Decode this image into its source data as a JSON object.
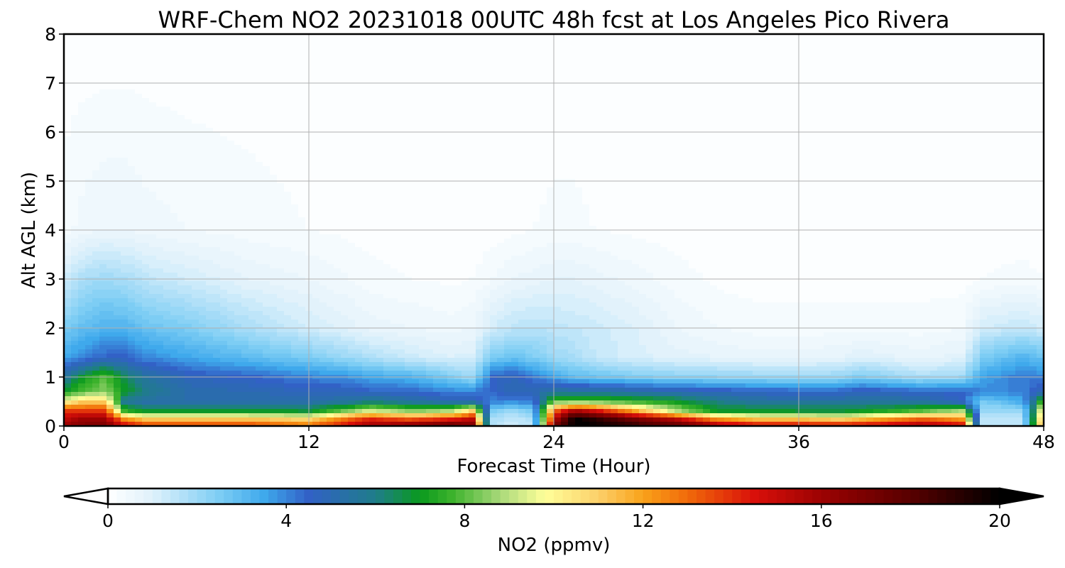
{
  "chart_data": {
    "type": "heatmap",
    "title": "WRF-Chem NO2  20231018 00UTC 48h fcst at Los Angeles Pico Rivera",
    "xlabel": "Forecast Time (Hour)",
    "ylabel": "Alt AGL (km)",
    "xlim": [
      0,
      48
    ],
    "ylim": [
      0,
      8
    ],
    "xticks": [
      0,
      12,
      24,
      36,
      48
    ],
    "yticks": [
      0,
      1,
      2,
      3,
      4,
      5,
      6,
      7,
      8
    ],
    "grid": true,
    "colorbar": {
      "label": "NO2  (ppmv)",
      "range": [
        0,
        20
      ],
      "ticks": [
        0,
        4,
        8,
        12,
        16,
        20
      ],
      "extend": "both",
      "levels": 100,
      "colormap": [
        [
          0,
          "#ffffff"
        ],
        [
          1,
          "#dff1fb"
        ],
        [
          2.5,
          "#7dcdf4"
        ],
        [
          3.5,
          "#3fa9ec"
        ],
        [
          4.5,
          "#3261c6"
        ],
        [
          6,
          "#1f7d8a"
        ],
        [
          7,
          "#0a9a1e"
        ],
        [
          7.7,
          "#3bb22c"
        ],
        [
          8.8,
          "#a9d97a"
        ],
        [
          9.8,
          "#ffff9a"
        ],
        [
          11,
          "#fcd06a"
        ],
        [
          12,
          "#f9a21a"
        ],
        [
          13,
          "#f16a0a"
        ],
        [
          14.5,
          "#d9100a"
        ],
        [
          16,
          "#9c0202"
        ],
        [
          18,
          "#580000"
        ],
        [
          20,
          "#000000"
        ]
      ]
    },
    "x": [
      0,
      1,
      2,
      3,
      4,
      6,
      9,
      12,
      14,
      15,
      17,
      19,
      20,
      21,
      22,
      23,
      24,
      25,
      26,
      28,
      30,
      32,
      34,
      36,
      38,
      39,
      42,
      44,
      45,
      47,
      48
    ],
    "z": [
      0,
      0.15,
      0.3,
      0.5,
      0.7,
      1.0,
      1.4,
      2.0,
      3.0,
      4.0,
      8.0
    ],
    "values": [
      [
        16,
        17,
        17,
        15,
        14,
        14,
        14,
        13,
        15,
        16,
        17,
        18,
        17,
        1.6,
        1.2,
        1.5,
        17,
        20,
        20,
        19,
        18,
        16,
        15,
        15,
        15,
        15,
        16,
        15,
        1.5,
        1.5,
        13
      ],
      [
        15,
        16,
        16,
        12,
        11,
        11,
        11,
        10.5,
        13,
        14,
        13,
        14,
        15,
        1.8,
        1.4,
        1.8,
        15,
        20,
        19,
        17,
        15,
        12,
        11,
        11,
        10.5,
        11,
        13,
        12,
        1.6,
        1.6,
        12
      ],
      [
        14,
        14,
        14,
        7.5,
        7,
        7,
        7,
        6.8,
        8.5,
        9.5,
        8.5,
        9,
        11,
        2.5,
        2,
        2.5,
        13,
        16,
        15,
        12,
        9,
        7,
        7,
        6.8,
        6.8,
        7,
        8,
        9,
        2,
        2,
        11
      ],
      [
        10,
        11,
        11,
        5.5,
        5.2,
        5.2,
        5.2,
        5.2,
        5.5,
        6,
        5.5,
        5,
        5,
        4,
        4,
        4,
        8,
        8,
        8,
        7.5,
        7,
        6,
        5.5,
        5.5,
        5.5,
        5.5,
        5.5,
        4.5,
        2.5,
        3.5,
        8
      ],
      [
        7,
        8,
        8.5,
        7,
        6,
        5.2,
        5,
        4.8,
        4.8,
        4.5,
        4.5,
        4,
        4,
        4.5,
        5,
        5,
        5.5,
        5.5,
        5.5,
        5.3,
        5,
        4.8,
        4.6,
        4.5,
        4.5,
        4.8,
        4.5,
        4.5,
        4,
        4,
        5
      ],
      [
        5.5,
        7,
        8,
        6.5,
        5.5,
        4.8,
        4.5,
        4,
        3.8,
        3.5,
        3.2,
        2.5,
        2,
        4.5,
        4.8,
        4.2,
        3.5,
        3,
        2.8,
        2.5,
        2.3,
        2.2,
        2.1,
        2,
        2.1,
        2.5,
        1.8,
        2,
        3.5,
        4.2,
        4
      ],
      [
        3.5,
        4,
        4.5,
        4.5,
        4,
        3.5,
        3,
        2.5,
        2,
        1.7,
        1.3,
        1,
        1.1,
        2.5,
        2.8,
        2.5,
        2,
        1.8,
        1.4,
        1.1,
        0.9,
        0.8,
        0.7,
        0.7,
        0.8,
        1,
        0.7,
        0.9,
        2.5,
        3.2,
        2.8
      ],
      [
        2.5,
        3,
        3.2,
        3.2,
        2.8,
        2.5,
        1.8,
        1.2,
        0.9,
        0.7,
        0.6,
        0.5,
        0.6,
        1.2,
        1.5,
        1.6,
        1.5,
        1.4,
        1.3,
        1.0,
        0.6,
        0.4,
        0.3,
        0.3,
        0.3,
        0.3,
        0.3,
        0.4,
        1.2,
        1.4,
        1.2
      ],
      [
        1.2,
        1.8,
        2,
        1.8,
        1.5,
        1.2,
        0.8,
        0.6,
        0.4,
        0.3,
        0.2,
        0.15,
        0.2,
        0.4,
        0.6,
        0.7,
        0.8,
        0.8,
        0.7,
        0.5,
        0.3,
        0.15,
        0.1,
        0.1,
        0.1,
        0.1,
        0.1,
        0.1,
        0.2,
        0.3,
        0.2
      ],
      [
        0.3,
        0.5,
        0.6,
        0.6,
        0.5,
        0.4,
        0.3,
        0.2,
        0.15,
        0.1,
        0.05,
        0.05,
        0.05,
        0.1,
        0.15,
        0.2,
        0.25,
        0.25,
        0.2,
        0.15,
        0.1,
        0.05,
        0.03,
        0.03,
        0.03,
        0.03,
        0.03,
        0.03,
        0.05,
        0.05,
        0.05
      ],
      [
        0.05,
        0.05,
        0.05,
        0.05,
        0.05,
        0.05,
        0.05,
        0.05,
        0.05,
        0.05,
        0.05,
        0.05,
        0.05,
        0.05,
        0.05,
        0.05,
        0.05,
        0.05,
        0.05,
        0.05,
        0.05,
        0.05,
        0.05,
        0.05,
        0.05,
        0.05,
        0.05,
        0.05,
        0.05,
        0.05,
        0.05
      ]
    ]
  }
}
